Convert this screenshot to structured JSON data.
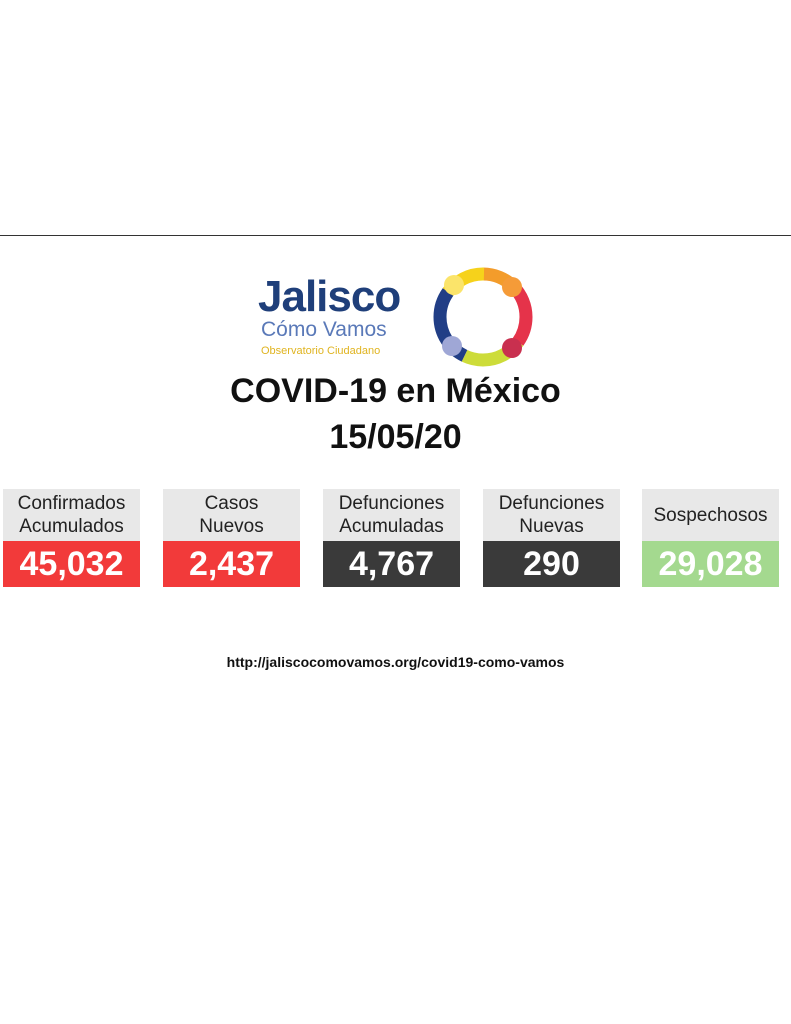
{
  "logo": {
    "name": "Jalisco",
    "tagline": "Cómo Vamos",
    "subtitle": "Observatorio Ciudadano"
  },
  "title": "COVID-19 en México",
  "date": "15/05/20",
  "cards": [
    {
      "label_lines": [
        "Confirmados",
        "Acumulados"
      ],
      "value": "45,032"
    },
    {
      "label_lines": [
        "Casos",
        "Nuevos"
      ],
      "value": "2,437"
    },
    {
      "label_lines": [
        "Defunciones",
        "Acumuladas"
      ],
      "value": "4,767"
    },
    {
      "label_lines": [
        "Defunciones",
        "Nuevas"
      ],
      "value": "290"
    },
    {
      "label_lines": [
        "Sospechosos"
      ],
      "value": "29,028"
    }
  ],
  "url": "http://jaliscocomovamos.org/covid19-como-vamos"
}
